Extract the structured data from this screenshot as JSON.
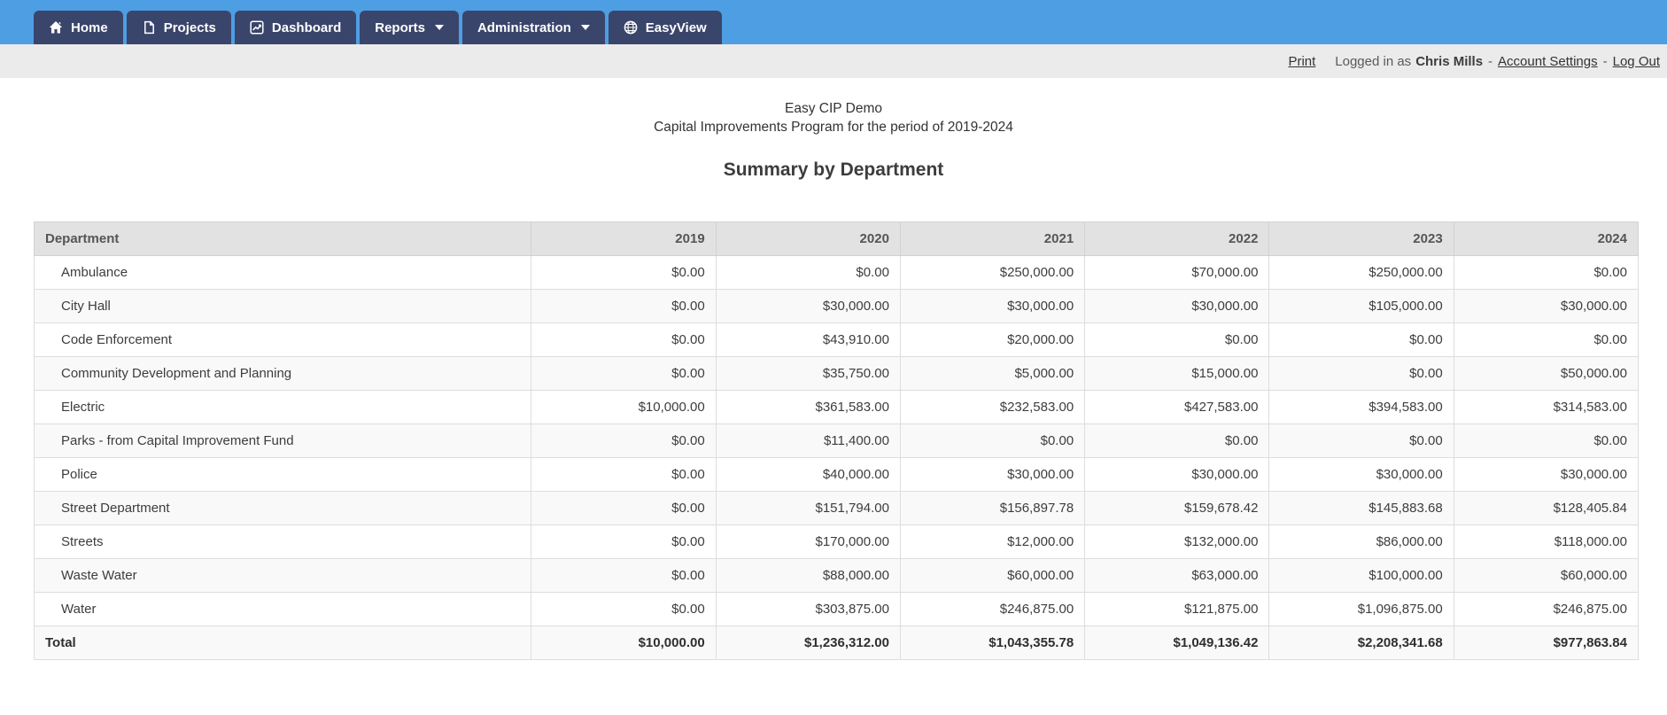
{
  "navbar": {
    "items": [
      {
        "label": "Home",
        "icon": "home-icon"
      },
      {
        "label": "Projects",
        "icon": "file-icon"
      },
      {
        "label": "Dashboard",
        "icon": "chart-line-icon"
      },
      {
        "label": "Reports",
        "icon": "caret-down-icon",
        "has_dropdown": true
      },
      {
        "label": "Administration",
        "icon": "caret-down-icon",
        "has_dropdown": true
      },
      {
        "label": "EasyView",
        "icon": "globe-icon"
      }
    ]
  },
  "utility_bar": {
    "print_label": "Print",
    "logged_in_prefix": "Logged in as",
    "user_name": "Chris Mills",
    "separator": "-",
    "account_settings_label": "Account Settings",
    "log_out_label": "Log Out"
  },
  "report": {
    "org_title": "Easy CIP Demo",
    "subtitle": "Capital Improvements Program for the period of 2019-2024",
    "heading": "Summary by Department"
  },
  "table": {
    "columns": [
      "Department",
      "2019",
      "2020",
      "2021",
      "2022",
      "2023",
      "2024"
    ],
    "rows": [
      {
        "department": "Ambulance",
        "values": [
          "$0.00",
          "$0.00",
          "$250,000.00",
          "$70,000.00",
          "$250,000.00",
          "$0.00"
        ]
      },
      {
        "department": "City Hall",
        "values": [
          "$0.00",
          "$30,000.00",
          "$30,000.00",
          "$30,000.00",
          "$105,000.00",
          "$30,000.00"
        ]
      },
      {
        "department": "Code Enforcement",
        "values": [
          "$0.00",
          "$43,910.00",
          "$20,000.00",
          "$0.00",
          "$0.00",
          "$0.00"
        ]
      },
      {
        "department": "Community Development and Planning",
        "values": [
          "$0.00",
          "$35,750.00",
          "$5,000.00",
          "$15,000.00",
          "$0.00",
          "$50,000.00"
        ]
      },
      {
        "department": "Electric",
        "values": [
          "$10,000.00",
          "$361,583.00",
          "$232,583.00",
          "$427,583.00",
          "$394,583.00",
          "$314,583.00"
        ]
      },
      {
        "department": "Parks - from Capital Improvement Fund",
        "values": [
          "$0.00",
          "$11,400.00",
          "$0.00",
          "$0.00",
          "$0.00",
          "$0.00"
        ]
      },
      {
        "department": "Police",
        "values": [
          "$0.00",
          "$40,000.00",
          "$30,000.00",
          "$30,000.00",
          "$30,000.00",
          "$30,000.00"
        ]
      },
      {
        "department": "Street Department",
        "values": [
          "$0.00",
          "$151,794.00",
          "$156,897.78",
          "$159,678.42",
          "$145,883.68",
          "$128,405.84"
        ]
      },
      {
        "department": "Streets",
        "values": [
          "$0.00",
          "$170,000.00",
          "$12,000.00",
          "$132,000.00",
          "$86,000.00",
          "$118,000.00"
        ]
      },
      {
        "department": "Waste Water",
        "values": [
          "$0.00",
          "$88,000.00",
          "$60,000.00",
          "$63,000.00",
          "$100,000.00",
          "$60,000.00"
        ]
      },
      {
        "department": "Water",
        "values": [
          "$0.00",
          "$303,875.00",
          "$246,875.00",
          "$121,875.00",
          "$1,096,875.00",
          "$246,875.00"
        ]
      }
    ],
    "total": {
      "label": "Total",
      "values": [
        "$10,000.00",
        "$1,236,312.00",
        "$1,043,355.78",
        "$1,049,136.42",
        "$2,208,341.68",
        "$977,863.84"
      ]
    }
  },
  "colors": {
    "navbar_bg": "#4E9EE3",
    "nav_tab_bg": "#3A456B",
    "utility_bar_bg": "#EBEBEB",
    "table_header_bg": "#E2E2E2",
    "row_stripe_bg": "#F9F9F9",
    "table_border": "#DDDDDD",
    "text": "#333333"
  }
}
